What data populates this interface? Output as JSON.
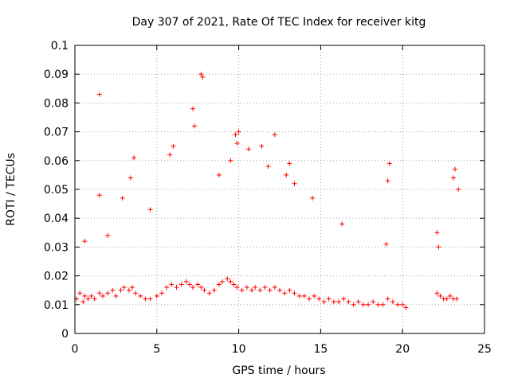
{
  "chart_data": {
    "type": "scatter",
    "title": "Day 307 of 2021, Rate Of TEC Index for receiver kitg",
    "xlabel": "GPS time / hours",
    "ylabel": "ROTI / TECUs",
    "xlim": [
      0,
      25
    ],
    "ylim": [
      0,
      0.1
    ],
    "x_ticks": [
      "0",
      "5",
      "10",
      "15",
      "20",
      "25"
    ],
    "y_ticks": [
      "0",
      "0.01",
      "0.02",
      "0.03",
      "0.04",
      "0.05",
      "0.06",
      "0.07",
      "0.08",
      "0.09",
      "0.1"
    ],
    "grid": true,
    "marker": "+",
    "color": "#ff0000",
    "series": [
      {
        "x": [
          0.1,
          0.3,
          0.5,
          0.6,
          0.8,
          1.0,
          1.2,
          1.5,
          1.7,
          2.0,
          2.3,
          2.5,
          2.8,
          3.0,
          3.3,
          3.5,
          3.7,
          4.0,
          4.3,
          4.6,
          5.0,
          5.3,
          5.6,
          5.9,
          6.2,
          6.5,
          6.8,
          7.0,
          7.2,
          7.5,
          7.7,
          7.9,
          8.2,
          8.5,
          8.8,
          9.0,
          9.3,
          9.5,
          9.7,
          9.9,
          10.2,
          10.5,
          10.8,
          11.0,
          11.3,
          11.6,
          11.9,
          12.2,
          12.5,
          12.8,
          13.1,
          13.4,
          13.7,
          14.0,
          14.3,
          14.6,
          14.9,
          15.2,
          15.5,
          15.8,
          16.1,
          16.4,
          16.7,
          17.0,
          17.3,
          17.6,
          17.9,
          18.2,
          18.5,
          18.8,
          19.1,
          19.4,
          19.7,
          20.0,
          20.2,
          22.1,
          22.3,
          22.5,
          22.7,
          22.9,
          23.1,
          23.3,
          1.5,
          1.5,
          7.7,
          7.8,
          7.2,
          7.3,
          9.8,
          9.9,
          10.0,
          12.2,
          19.2,
          19.1,
          23.2,
          23.1,
          23.4,
          3.6,
          3.4,
          5.8,
          6.0,
          10.6,
          11.4,
          13.1,
          14.5,
          0.6,
          2.0,
          2.9,
          4.6,
          8.8,
          9.5,
          11.8,
          12.9,
          13.4,
          16.3,
          19.0,
          22.1,
          22.2
        ],
        "y": [
          0.012,
          0.014,
          0.011,
          0.013,
          0.012,
          0.013,
          0.012,
          0.014,
          0.013,
          0.014,
          0.015,
          0.013,
          0.015,
          0.016,
          0.015,
          0.016,
          0.014,
          0.013,
          0.012,
          0.012,
          0.013,
          0.014,
          0.016,
          0.017,
          0.016,
          0.017,
          0.018,
          0.017,
          0.016,
          0.017,
          0.016,
          0.015,
          0.014,
          0.015,
          0.017,
          0.018,
          0.019,
          0.018,
          0.017,
          0.016,
          0.015,
          0.016,
          0.015,
          0.016,
          0.015,
          0.016,
          0.015,
          0.016,
          0.015,
          0.014,
          0.015,
          0.014,
          0.013,
          0.013,
          0.012,
          0.013,
          0.012,
          0.011,
          0.012,
          0.011,
          0.011,
          0.012,
          0.011,
          0.01,
          0.011,
          0.01,
          0.01,
          0.011,
          0.01,
          0.01,
          0.012,
          0.011,
          0.01,
          0.01,
          0.009,
          0.014,
          0.013,
          0.012,
          0.012,
          0.013,
          0.012,
          0.012,
          0.083,
          0.048,
          0.09,
          0.089,
          0.078,
          0.072,
          0.069,
          0.066,
          0.07,
          0.069,
          0.059,
          0.053,
          0.057,
          0.054,
          0.05,
          0.061,
          0.054,
          0.062,
          0.065,
          0.064,
          0.065,
          0.059,
          0.047,
          0.032,
          0.034,
          0.047,
          0.043,
          0.055,
          0.06,
          0.058,
          0.055,
          0.052,
          0.038,
          0.031,
          0.035,
          0.03
        ]
      }
    ]
  }
}
